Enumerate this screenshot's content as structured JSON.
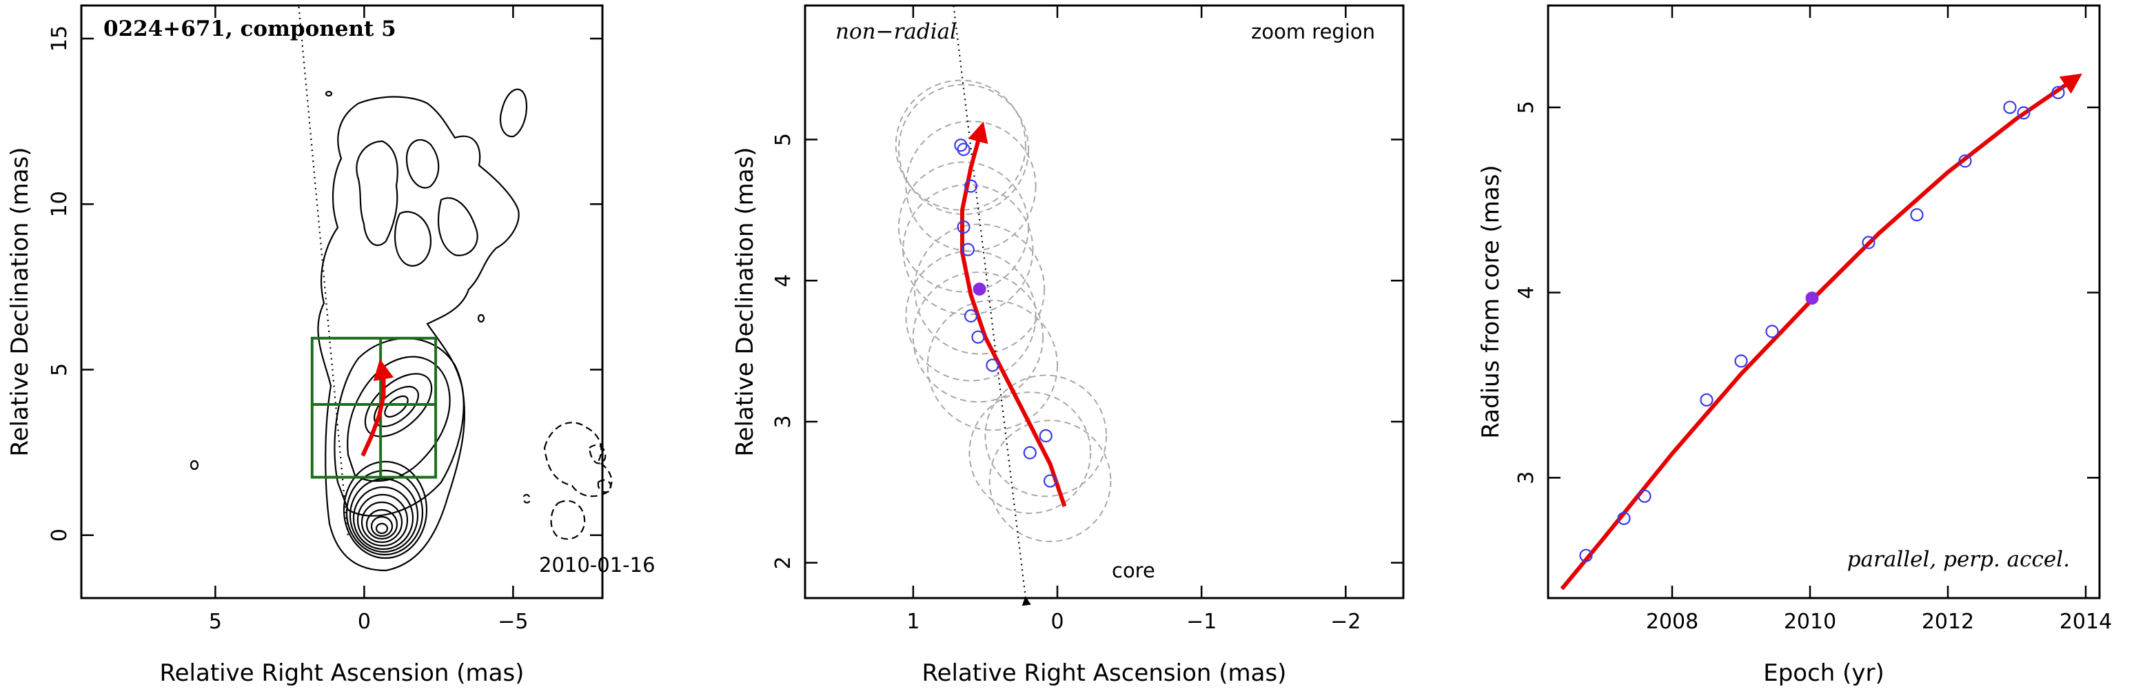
{
  "chart_data": [
    {
      "type": "scatter",
      "panel": "map",
      "title": "0224+671, component 5",
      "date_label": "2010-01-16",
      "xlabel": "Relative Right Ascension (mas)",
      "ylabel": "Relative Declination (mas)",
      "xlim": [
        9.5,
        -8.0
      ],
      "ylim": [
        -1.9,
        16.0
      ],
      "x_ticks": [
        5,
        0,
        -5
      ],
      "x_tick_labels": [
        "5",
        "0",
        "−5"
      ],
      "y_ticks": [
        0,
        5,
        10,
        15
      ],
      "y_tick_labels": [
        "0",
        "5",
        "10",
        "15"
      ],
      "dotted_line": {
        "x": [
          0.55,
          2.2
        ],
        "y": [
          0.0,
          16.0
        ]
      },
      "zoom_boxes": [
        {
          "x0": 1.75,
          "x1": -2.4,
          "y0": 1.75,
          "y1": 5.95
        },
        {
          "x0": 1.75,
          "x1": -2.4,
          "y0": 3.95,
          "y1": 3.95
        },
        {
          "x0": -0.55,
          "x1": -0.55,
          "y0": 1.75,
          "y1": 5.95
        }
      ],
      "track": {
        "x": [
          0.05,
          -0.25,
          -0.5,
          -0.65,
          -0.65,
          -0.55
        ],
        "y": [
          2.4,
          3.0,
          3.6,
          4.2,
          4.7,
          5.2
        ]
      },
      "colors": {
        "track": "#e60000",
        "zoom_box": "#1f6e1f",
        "contour": "#000000"
      }
    },
    {
      "type": "scatter",
      "panel": "zoom",
      "annotations": [
        "non−radial",
        "zoom region",
        "core"
      ],
      "xlabel": "Relative Right Ascension (mas)",
      "ylabel": "Relative Declination (mas)",
      "xlim": [
        1.75,
        -2.4
      ],
      "ylim": [
        1.75,
        5.95
      ],
      "x_ticks": [
        1,
        0,
        -1,
        -2
      ],
      "x_tick_labels": [
        "1",
        "0",
        "−1",
        "−2"
      ],
      "y_ticks": [
        2,
        3,
        4,
        5
      ],
      "y_tick_labels": [
        "2",
        "3",
        "4",
        "5"
      ],
      "points": {
        "x": [
          0.05,
          0.08,
          0.19,
          0.45,
          0.55,
          0.6,
          0.62,
          0.65,
          0.6,
          0.65,
          0.67
        ],
        "y": [
          2.58,
          2.9,
          2.78,
          3.4,
          3.6,
          3.75,
          4.22,
          4.38,
          4.67,
          4.93,
          4.96
        ]
      },
      "highlight_point": {
        "x": 0.54,
        "y": 3.94
      },
      "circles": [
        {
          "x": 0.05,
          "y": 2.58,
          "r": 0.42
        },
        {
          "x": 0.08,
          "y": 2.9,
          "r": 0.42
        },
        {
          "x": 0.19,
          "y": 2.78,
          "r": 0.42
        },
        {
          "x": 0.45,
          "y": 3.4,
          "r": 0.45
        },
        {
          "x": 0.55,
          "y": 3.6,
          "r": 0.45
        },
        {
          "x": 0.6,
          "y": 3.75,
          "r": 0.45
        },
        {
          "x": 0.54,
          "y": 3.94,
          "r": 0.45
        },
        {
          "x": 0.62,
          "y": 4.22,
          "r": 0.45
        },
        {
          "x": 0.65,
          "y": 4.38,
          "r": 0.45
        },
        {
          "x": 0.6,
          "y": 4.67,
          "r": 0.45
        },
        {
          "x": 0.65,
          "y": 4.93,
          "r": 0.45
        },
        {
          "x": 0.67,
          "y": 4.96,
          "r": 0.45
        }
      ],
      "track": {
        "x": [
          -0.05,
          0.05,
          0.2,
          0.35,
          0.5,
          0.6,
          0.66,
          0.66,
          0.6,
          0.52
        ],
        "y": [
          2.4,
          2.7,
          3.0,
          3.3,
          3.6,
          3.9,
          4.2,
          4.5,
          4.8,
          5.1
        ]
      },
      "dotted_line": {
        "x": [
          0.22,
          0.72
        ],
        "y": [
          1.75,
          5.95
        ]
      },
      "colors": {
        "points": "#3a3ae8",
        "highlight": "#8a2be2",
        "track": "#e60000",
        "circles": "#a8a8a8"
      }
    },
    {
      "type": "scatter",
      "panel": "radius",
      "annotation": "parallel, perp. accel.",
      "xlabel": "Epoch (yr)",
      "ylabel": "Radius from core (mas)",
      "xlim": [
        2006.2,
        2014.2
      ],
      "ylim": [
        2.35,
        5.55
      ],
      "x_ticks": [
        2008,
        2010,
        2012,
        2014
      ],
      "x_tick_labels": [
        "2008",
        "2010",
        "2012",
        "2014"
      ],
      "y_ticks": [
        3,
        4,
        5
      ],
      "y_tick_labels": [
        "3",
        "4",
        "5"
      ],
      "points": {
        "x": [
          2006.75,
          2007.3,
          2007.6,
          2008.5,
          2009.0,
          2009.45,
          2010.85,
          2011.55,
          2012.25,
          2012.9,
          2013.1,
          2013.6
        ],
        "y": [
          2.58,
          2.78,
          2.9,
          3.42,
          3.63,
          3.79,
          4.27,
          4.42,
          4.71,
          5.0,
          4.97,
          5.08
        ]
      },
      "highlight_point": {
        "x": 2010.03,
        "y": 3.97
      },
      "fit": {
        "x": [
          2006.4,
          2007.0,
          2008.0,
          2009.0,
          2010.0,
          2011.0,
          2012.0,
          2013.0,
          2013.9
        ],
        "y": [
          2.4,
          2.67,
          3.13,
          3.56,
          3.95,
          4.32,
          4.65,
          4.94,
          5.17
        ]
      },
      "colors": {
        "points": "#3a3ae8",
        "highlight": "#8a2be2",
        "fit": "#e60000"
      }
    }
  ]
}
